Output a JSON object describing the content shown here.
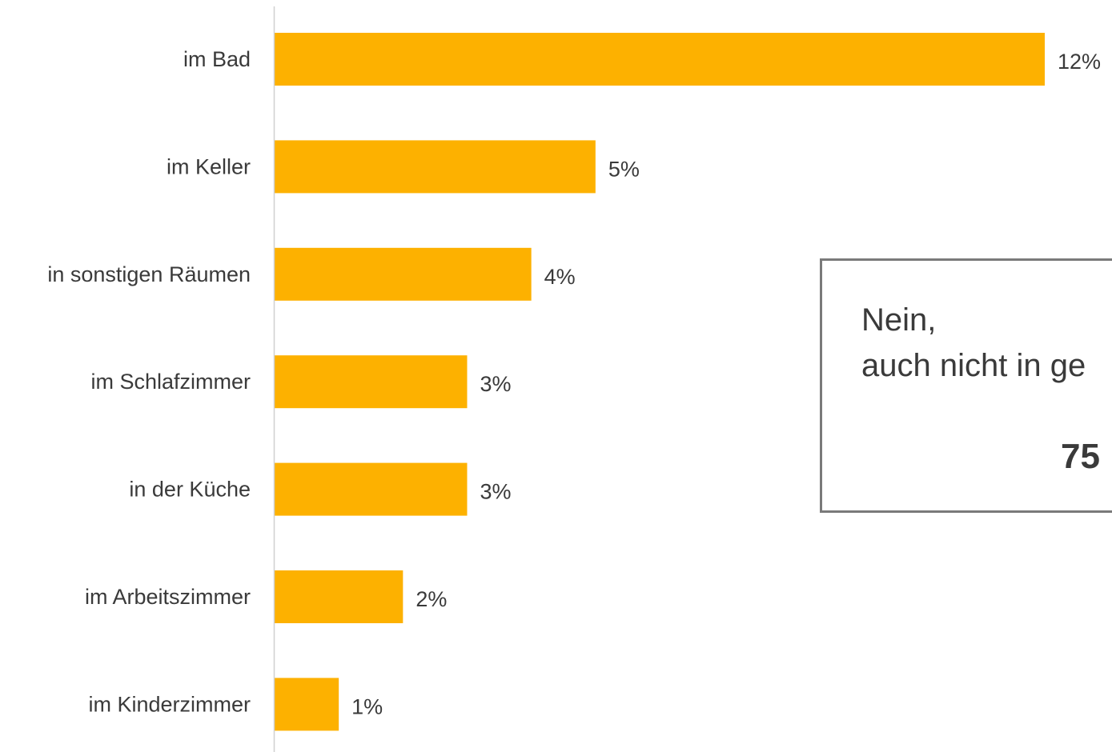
{
  "chart_data": {
    "type": "bar",
    "orientation": "horizontal",
    "categories": [
      "im Bad",
      "im Keller",
      "in sonstigen Räumen",
      "im Schlafzimmer",
      "in der Küche",
      "im Arbeitszimmer",
      "im Kinderzimmer"
    ],
    "values": [
      12,
      5,
      4,
      3,
      3,
      2,
      1
    ],
    "value_labels": [
      "12%",
      "5%",
      "4%",
      "3%",
      "3%",
      "2%",
      "1%"
    ],
    "xlim": [
      0,
      12
    ],
    "grid": false,
    "legend": "none",
    "bar_color": "#FDB100",
    "axis_color": "#d0d0d0"
  },
  "callout": {
    "line1": "Nein,",
    "line2": "auch nicht in ge",
    "value": "75"
  }
}
